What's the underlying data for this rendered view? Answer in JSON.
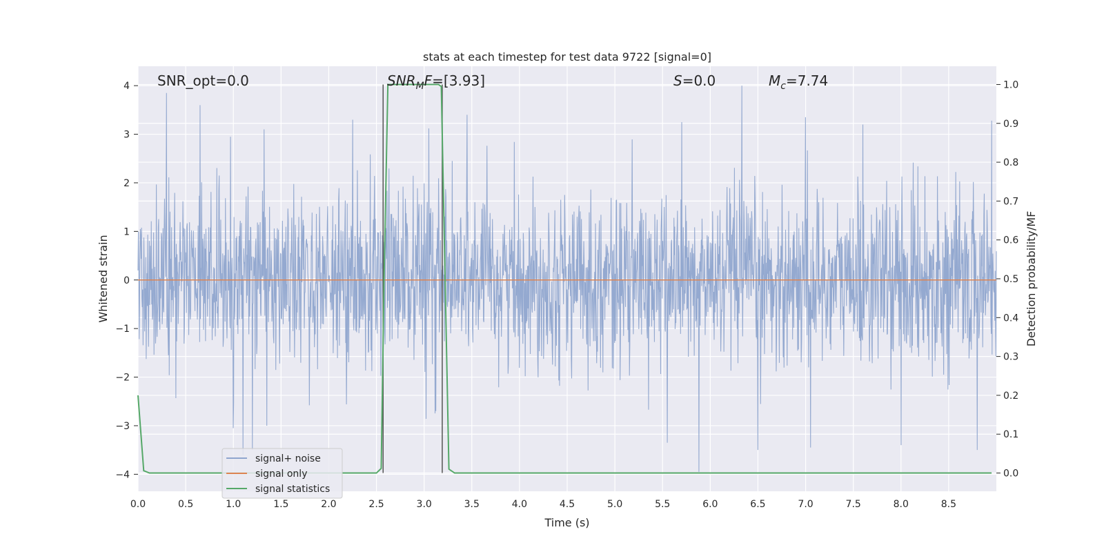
{
  "chart_data": {
    "type": "line",
    "title": "stats at each timestep for test data 9722 [signal=0]",
    "xlabel": "Time (s)",
    "ylabel": "Whitened strain",
    "ylabel_right": "Detection probability/MF",
    "xlim": [
      0.0,
      9.0
    ],
    "ylim_left": [
      -4.35,
      4.4
    ],
    "ylim_right": [
      -0.047,
      1.047
    ],
    "grid": true,
    "legend_position": "lower-left",
    "x_ticks": [
      "0.0",
      "0.5",
      "1.0",
      "1.5",
      "2.0",
      "2.5",
      "3.0",
      "3.5",
      "4.0",
      "4.5",
      "5.0",
      "5.5",
      "6.0",
      "6.5",
      "7.0",
      "7.5",
      "8.0",
      "8.5"
    ],
    "y_ticks_left": [
      "−4",
      "−3",
      "−2",
      "−1",
      "0",
      "1",
      "2",
      "3",
      "4"
    ],
    "y_ticks_right": [
      "0.0",
      "0.1",
      "0.2",
      "0.3",
      "0.4",
      "0.5",
      "0.6",
      "0.7",
      "0.8",
      "0.9",
      "1.0"
    ],
    "annotations": {
      "snr_opt": "SNR_opt=0.0",
      "snr_mf_var": "SNR",
      "snr_mf_sub": "M",
      "snr_mf_var2": "F",
      "snr_mf_value": "=[3.93]",
      "s_var": "S",
      "s_value": "=0.0",
      "mc_var": "M",
      "mc_sub": "c",
      "mc_value": "=7.74"
    },
    "vertical_markers": [
      2.57,
      3.19
    ],
    "series": [
      {
        "name": "signal+ noise",
        "color": "#8fa5ce",
        "axis": "left",
        "kind": "noise",
        "x_range": [
          0.0,
          9.0
        ],
        "amplitude_sigma": 0.85,
        "peaks_up": [
          [
            0.3,
            3.85
          ],
          [
            0.65,
            3.6
          ],
          [
            0.97,
            2.95
          ],
          [
            1.32,
            3.1
          ],
          [
            2.25,
            3.3
          ],
          [
            3.05,
            3.12
          ],
          [
            3.45,
            3.4
          ],
          [
            5.7,
            3.25
          ],
          [
            6.33,
            4.0
          ],
          [
            7.0,
            3.35
          ],
          [
            7.6,
            3.2
          ],
          [
            8.95,
            3.28
          ]
        ],
        "peaks_down": [
          [
            1.0,
            -3.05
          ],
          [
            1.1,
            -3.6
          ],
          [
            1.2,
            -3.5
          ],
          [
            5.55,
            -3.35
          ],
          [
            5.88,
            -3.95
          ],
          [
            6.5,
            -3.5
          ],
          [
            7.05,
            -3.45
          ],
          [
            8.0,
            -3.4
          ],
          [
            8.8,
            -3.5
          ]
        ]
      },
      {
        "name": "signal only",
        "color": "#dd8452",
        "axis": "left",
        "x": [
          0.0,
          9.0
        ],
        "y": [
          0.0,
          0.0
        ]
      },
      {
        "name": "signal statistics",
        "color": "#55a868",
        "axis": "right",
        "x": [
          0.0,
          0.06,
          0.12,
          0.5,
          1.0,
          1.5,
          2.0,
          2.5,
          2.55,
          2.58,
          2.62,
          2.8,
          3.0,
          3.15,
          3.18,
          3.22,
          3.26,
          3.32,
          4.0,
          5.0,
          6.0,
          7.0,
          8.0,
          8.95
        ],
        "y": [
          0.2,
          0.006,
          0.0,
          0.0,
          0.0,
          0.0,
          0.0,
          0.0,
          0.012,
          0.5,
          1.0,
          1.0,
          1.0,
          1.0,
          0.995,
          0.5,
          0.01,
          0.0,
          0.0,
          0.0,
          0.0,
          0.0,
          0.0,
          0.0
        ]
      }
    ]
  }
}
